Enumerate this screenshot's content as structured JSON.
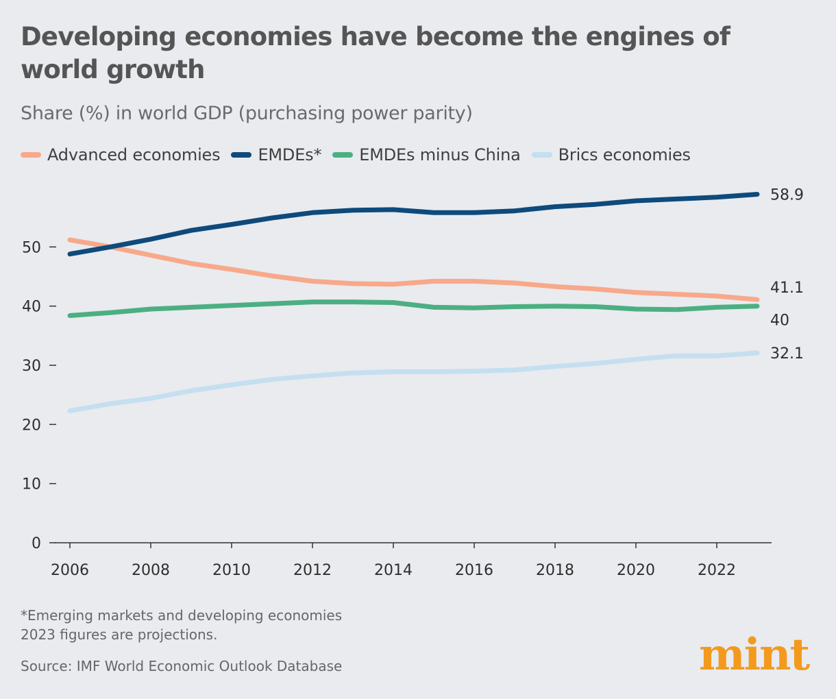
{
  "header": {
    "title": "Developing economies have become the engines of world growth",
    "subtitle": "Share (%) in world GDP (purchasing power parity)"
  },
  "footer": {
    "footnote_line1": "*Emerging markets and developing economies",
    "footnote_line2": "2023 figures are projections.",
    "source": "Source: IMF World Economic Outlook Database",
    "logo_text": "mint"
  },
  "colors": {
    "background": "#e9ebef",
    "advanced": "#f7a98a",
    "emdes": "#0e4a7c",
    "emdes_minus_china": "#4caf82",
    "brics": "#c4dff0",
    "logo": "#f39a1e"
  },
  "chart_data": {
    "type": "line",
    "title": "Developing economies have become the engines of world growth",
    "subtitle": "Share (%) in world GDP (purchasing power parity)",
    "xlabel": "",
    "ylabel": "",
    "x": [
      2006,
      2007,
      2008,
      2009,
      2010,
      2011,
      2012,
      2013,
      2014,
      2015,
      2016,
      2017,
      2018,
      2019,
      2020,
      2021,
      2022,
      2023
    ],
    "xticks": [
      "2006",
      "2008",
      "2010",
      "2012",
      "2014",
      "2016",
      "2018",
      "2020",
      "2022"
    ],
    "yticks": [
      "0",
      "10",
      "20",
      "30",
      "40",
      "50"
    ],
    "ylim": [
      0,
      60
    ],
    "xlim": [
      2006,
      2023
    ],
    "grid": false,
    "legend_position": "top",
    "series": [
      {
        "name": "Advanced economies",
        "key": "advanced",
        "values": [
          51.2,
          50.0,
          48.6,
          47.2,
          46.2,
          45.1,
          44.2,
          43.8,
          43.7,
          44.2,
          44.2,
          43.9,
          43.3,
          42.9,
          42.3,
          42.0,
          41.7,
          41.1
        ],
        "end_label": "41.1"
      },
      {
        "name": "EMDEs*",
        "key": "emdes",
        "values": [
          48.8,
          50.0,
          51.3,
          52.8,
          53.8,
          54.9,
          55.8,
          56.2,
          56.3,
          55.8,
          55.8,
          56.1,
          56.8,
          57.2,
          57.8,
          58.1,
          58.4,
          58.9
        ],
        "end_label": "58.9"
      },
      {
        "name": "EMDEs minus China",
        "key": "emdes_minus_china",
        "values": [
          38.4,
          38.9,
          39.5,
          39.8,
          40.1,
          40.4,
          40.7,
          40.7,
          40.6,
          39.8,
          39.7,
          39.9,
          40.0,
          39.9,
          39.5,
          39.4,
          39.8,
          40.0
        ],
        "end_label": "40"
      },
      {
        "name": "Brics economies",
        "key": "brics",
        "values": [
          22.3,
          23.5,
          24.4,
          25.7,
          26.7,
          27.6,
          28.2,
          28.7,
          28.9,
          28.9,
          29.0,
          29.2,
          29.8,
          30.3,
          31.0,
          31.6,
          31.6,
          32.1
        ],
        "end_label": "32.1"
      }
    ]
  }
}
